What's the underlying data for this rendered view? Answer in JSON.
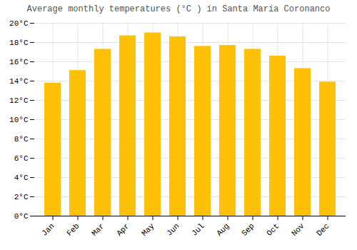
{
  "chart_data": {
    "type": "bar",
    "title": "Average monthly temperatures (°C ) in Santa María Coronanco",
    "categories": [
      "Jan",
      "Feb",
      "Mar",
      "Apr",
      "May",
      "Jun",
      "Jul",
      "Aug",
      "Sep",
      "Oct",
      "Nov",
      "Dec"
    ],
    "values": [
      13.8,
      15.1,
      17.3,
      18.7,
      19.0,
      18.6,
      17.6,
      17.7,
      17.3,
      16.6,
      15.3,
      13.9
    ],
    "color": "#FFC107",
    "ylim": [
      0,
      20
    ],
    "yticks": [
      {
        "value": 0,
        "label": "0°C"
      },
      {
        "value": 2,
        "label": "2°C"
      },
      {
        "value": 4,
        "label": "4°C"
      },
      {
        "value": 6,
        "label": "6°C"
      },
      {
        "value": 8,
        "label": "8°C"
      },
      {
        "value": 10,
        "label": "10°C"
      },
      {
        "value": 12,
        "label": "12°C"
      },
      {
        "value": 14,
        "label": "14°C"
      },
      {
        "value": 16,
        "label": "16°C"
      },
      {
        "value": 18,
        "label": "18°C"
      },
      {
        "value": 20,
        "label": "20°C"
      }
    ],
    "grid": true
  }
}
